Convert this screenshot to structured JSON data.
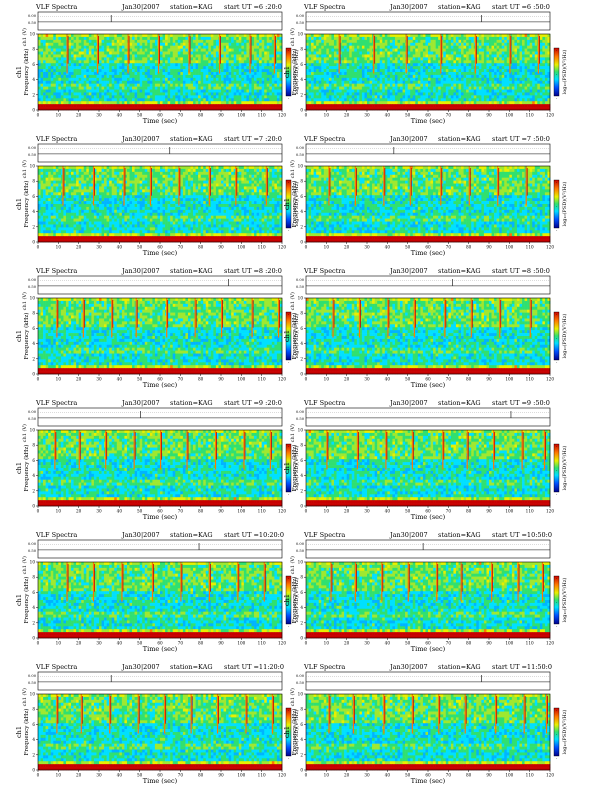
{
  "page_title": "VLF Spectra station KAG 30 Jan 2007 ch1",
  "chart_data": [
    {
      "type": "heatmap",
      "title": "VLF Spectra",
      "date": "Jan30|2007",
      "station": "station=KAG",
      "start_label": "start UT =6 :20:0",
      "xlabel": "Time (sec)",
      "ylabel": "Frequency (kHz)",
      "channel_label": "ch1",
      "amp_label": "ch1 (V)",
      "colorbar_label": "log₁₀(PSD)(V²/Hz)",
      "xlim": [
        0,
        120
      ],
      "ylim": [
        0,
        10
      ],
      "x_ticks": [
        "0",
        "10",
        "20",
        "30",
        "40",
        "50",
        "60",
        "70",
        "80",
        "90",
        "100",
        "110",
        "120"
      ],
      "y_ticks": [
        "0",
        "2",
        "4",
        "6",
        "8",
        "10"
      ],
      "amp_ticks": [
        "0.00",
        "0.50"
      ],
      "cbar_ticks": [
        "-",
        "-",
        "-"
      ],
      "emission_band_khz": [
        6,
        10
      ],
      "vertical_streaks_sec": [
        14,
        29,
        44,
        59,
        74,
        89,
        104,
        116
      ]
    },
    {
      "type": "heatmap",
      "title": "VLF Spectra",
      "date": "Jan30|2007",
      "station": "station=KAG",
      "start_label": "start UT =6 :50:0",
      "xlabel": "Time (sec)",
      "ylabel": "Frequency (kHz)",
      "channel_label": "ch1",
      "amp_label": "ch1 (V)",
      "colorbar_label": "log₁₀(PSD)(V²/Hz)",
      "xlim": [
        0,
        120
      ],
      "ylim": [
        0,
        10
      ],
      "x_ticks": [
        "0",
        "10",
        "20",
        "30",
        "40",
        "50",
        "60",
        "70",
        "80",
        "90",
        "100",
        "110",
        "120"
      ],
      "y_ticks": [
        "0",
        "2",
        "4",
        "6",
        "8",
        "10"
      ],
      "amp_ticks": [
        "0.00",
        "0.50"
      ],
      "cbar_ticks": [
        "-",
        "-",
        "-"
      ],
      "emission_band_khz": [
        6,
        10
      ],
      "vertical_streaks_sec": [
        16,
        33,
        49,
        66,
        83,
        100,
        114
      ]
    },
    {
      "type": "heatmap",
      "title": "VLF Spectra",
      "date": "Jan30|2007",
      "station": "station=KAG",
      "start_label": "start UT =7 :20:0",
      "xlabel": "Time (sec)",
      "ylabel": "Frequency (kHz)",
      "channel_label": "ch1",
      "amp_label": "ch1 (V)",
      "colorbar_label": "log₁₀(PSD)(V²/Hz)",
      "xlim": [
        0,
        120
      ],
      "ylim": [
        0,
        10
      ],
      "x_ticks": [
        "0",
        "10",
        "20",
        "30",
        "40",
        "50",
        "60",
        "70",
        "80",
        "90",
        "100",
        "110",
        "120"
      ],
      "y_ticks": [
        "0",
        "2",
        "4",
        "6",
        "8",
        "10"
      ],
      "amp_ticks": [
        "0.00",
        "0.50"
      ],
      "cbar_ticks": [
        "-",
        "-",
        "-"
      ],
      "emission_band_khz": [
        6,
        10
      ],
      "vertical_streaks_sec": [
        12,
        27,
        42,
        55,
        69,
        84,
        97,
        112
      ]
    },
    {
      "type": "heatmap",
      "title": "VLF Spectra",
      "date": "Jan30|2007",
      "station": "station=KAG",
      "start_label": "start UT =7 :50:0",
      "xlabel": "Time (sec)",
      "ylabel": "Frequency (kHz)",
      "channel_label": "ch1",
      "amp_label": "ch1 (V)",
      "colorbar_label": "log₁₀(PSD)(V²/Hz)",
      "xlim": [
        0,
        120
      ],
      "ylim": [
        0,
        10
      ],
      "x_ticks": [
        "0",
        "10",
        "20",
        "30",
        "40",
        "50",
        "60",
        "70",
        "80",
        "90",
        "100",
        "110",
        "120"
      ],
      "y_ticks": [
        "0",
        "2",
        "4",
        "6",
        "8",
        "10"
      ],
      "amp_ticks": [
        "0.00",
        "0.50"
      ],
      "cbar_ticks": [
        "-",
        "-",
        "-"
      ],
      "emission_band_khz": [
        6,
        10
      ],
      "vertical_streaks_sec": [
        11,
        24,
        38,
        51,
        66,
        80,
        94,
        108
      ]
    },
    {
      "type": "heatmap",
      "title": "VLF Spectra",
      "date": "Jan30|2007",
      "station": "station=KAG",
      "start_label": "start UT =8 :20:0",
      "xlabel": "Time (sec)",
      "ylabel": "Frequency (kHz)",
      "channel_label": "ch1",
      "amp_label": "ch1 (V)",
      "colorbar_label": "log₁₀(PSD)(V²/Hz)",
      "xlim": [
        0,
        120
      ],
      "ylim": [
        0,
        10
      ],
      "x_ticks": [
        "0",
        "10",
        "20",
        "30",
        "40",
        "50",
        "60",
        "70",
        "80",
        "90",
        "100",
        "110",
        "120"
      ],
      "y_ticks": [
        "0",
        "2",
        "4",
        "6",
        "8",
        "10"
      ],
      "amp_ticks": [
        "0.00",
        "0.50"
      ],
      "cbar_ticks": [
        "-",
        "-",
        "-"
      ],
      "emission_band_khz": [
        6,
        10
      ],
      "vertical_streaks_sec": [
        9,
        22,
        36,
        48,
        63,
        77,
        90,
        105,
        118
      ]
    },
    {
      "type": "heatmap",
      "title": "VLF Spectra",
      "date": "Jan30|2007",
      "station": "station=KAG",
      "start_label": "start UT =8 :50:0",
      "xlabel": "Time (sec)",
      "ylabel": "Frequency (kHz)",
      "channel_label": "ch1",
      "amp_label": "ch1 (V)",
      "colorbar_label": "log₁₀(PSD)(V²/Hz)",
      "xlim": [
        0,
        120
      ],
      "ylim": [
        0,
        10
      ],
      "x_ticks": [
        "0",
        "10",
        "20",
        "30",
        "40",
        "50",
        "60",
        "70",
        "80",
        "90",
        "100",
        "110",
        "120"
      ],
      "y_ticks": [
        "0",
        "2",
        "4",
        "6",
        "8",
        "10"
      ],
      "amp_ticks": [
        "0.00",
        "0.50"
      ],
      "cbar_ticks": [
        "-",
        "-",
        "-"
      ],
      "emission_band_khz": [
        6,
        10
      ],
      "vertical_streaks_sec": [
        13,
        26,
        40,
        53,
        68,
        81,
        95,
        110
      ]
    },
    {
      "type": "heatmap",
      "title": "VLF Spectra",
      "date": "Jan30|2007",
      "station": "station=KAG",
      "start_label": "start UT =9 :20:0",
      "xlabel": "Time (sec)",
      "ylabel": "Frequency (kHz)",
      "channel_label": "ch1",
      "amp_label": "ch1 (V)",
      "colorbar_label": "log₁₀(PSD)(V²/Hz)",
      "xlim": [
        0,
        120
      ],
      "ylim": [
        0,
        10
      ],
      "x_ticks": [
        "0",
        "10",
        "20",
        "30",
        "40",
        "50",
        "60",
        "70",
        "80",
        "90",
        "100",
        "110",
        "120"
      ],
      "y_ticks": [
        "0",
        "2",
        "4",
        "6",
        "8",
        "10"
      ],
      "amp_ticks": [
        "0.00",
        "0.50"
      ],
      "cbar_ticks": [
        "-",
        "-",
        "-"
      ],
      "emission_band_khz": [
        6,
        10
      ],
      "vertical_streaks_sec": [
        8,
        20,
        33,
        47,
        60,
        73,
        87,
        101,
        114
      ]
    },
    {
      "type": "heatmap",
      "title": "VLF Spectra",
      "date": "Jan30|2007",
      "station": "station=KAG",
      "start_label": "start UT =9 :50:0",
      "xlabel": "Time (sec)",
      "ylabel": "Frequency (kHz)",
      "channel_label": "ch1",
      "amp_label": "ch1 (V)",
      "colorbar_label": "log₁₀(PSD)(V²/Hz)",
      "xlim": [
        0,
        120
      ],
      "ylim": [
        0,
        10
      ],
      "x_ticks": [
        "0",
        "10",
        "20",
        "30",
        "40",
        "50",
        "60",
        "70",
        "80",
        "90",
        "100",
        "110",
        "120"
      ],
      "y_ticks": [
        "0",
        "2",
        "4",
        "6",
        "8",
        "10"
      ],
      "amp_ticks": [
        "0.00",
        "0.50"
      ],
      "cbar_ticks": [
        "-",
        "-",
        "-"
      ],
      "emission_band_khz": [
        6,
        10
      ],
      "vertical_streaks_sec": [
        10,
        25,
        39,
        52,
        67,
        79,
        92,
        106,
        117
      ]
    },
    {
      "type": "heatmap",
      "title": "VLF Spectra",
      "date": "Jan30|2007",
      "station": "station=KAG",
      "start_label": "start UT =10:20:0",
      "xlabel": "Time (sec)",
      "ylabel": "Frequency (kHz)",
      "channel_label": "ch1",
      "amp_label": "ch1 (V)",
      "colorbar_label": "log₁₀(PSD)(V²/Hz)",
      "xlim": [
        0,
        120
      ],
      "ylim": [
        0,
        10
      ],
      "x_ticks": [
        "0",
        "10",
        "20",
        "30",
        "40",
        "50",
        "60",
        "70",
        "80",
        "90",
        "100",
        "110",
        "120"
      ],
      "y_ticks": [
        "0",
        "2",
        "4",
        "6",
        "8",
        "10"
      ],
      "amp_ticks": [
        "0.00",
        "0.50"
      ],
      "cbar_ticks": [
        "-",
        "-",
        "-"
      ],
      "emission_band_khz": [
        6,
        10
      ],
      "vertical_streaks_sec": [
        14,
        27,
        41,
        56,
        70,
        84,
        98,
        111
      ]
    },
    {
      "type": "heatmap",
      "title": "VLF Spectra",
      "date": "Jan30|2007",
      "station": "station=KAG",
      "start_label": "start UT =10:50:0",
      "xlabel": "Time (sec)",
      "ylabel": "Frequency (kHz)",
      "channel_label": "ch1",
      "amp_label": "ch1 (V)",
      "colorbar_label": "log₁₀(PSD)(V²/Hz)",
      "xlim": [
        0,
        120
      ],
      "ylim": [
        0,
        10
      ],
      "x_ticks": [
        "0",
        "10",
        "20",
        "30",
        "40",
        "50",
        "60",
        "70",
        "80",
        "90",
        "100",
        "110",
        "120"
      ],
      "y_ticks": [
        "0",
        "2",
        "4",
        "6",
        "8",
        "10"
      ],
      "amp_ticks": [
        "0.00",
        "0.50"
      ],
      "cbar_ticks": [
        "-",
        "-",
        "-"
      ],
      "emission_band_khz": [
        6,
        10
      ],
      "vertical_streaks_sec": [
        12,
        24,
        37,
        50,
        64,
        76,
        91,
        104,
        116
      ]
    },
    {
      "type": "heatmap",
      "title": "VLF Spectra",
      "date": "Jan30|2007",
      "station": "station=KAG",
      "start_label": "start UT =11:20:0",
      "xlabel": "Time (sec)",
      "ylabel": "Frequency (kHz)",
      "channel_label": "ch1",
      "amp_label": "ch1 (V)",
      "colorbar_label": "log₁₀(PSD)(V²/Hz)",
      "xlim": [
        0,
        120
      ],
      "ylim": [
        0,
        10
      ],
      "x_ticks": [
        "0",
        "10",
        "20",
        "30",
        "40",
        "50",
        "60",
        "70",
        "80",
        "90",
        "100",
        "110",
        "120"
      ],
      "y_ticks": [
        "0",
        "2",
        "4",
        "6",
        "8",
        "10"
      ],
      "amp_ticks": [
        "0.00",
        "0.50"
      ],
      "cbar_ticks": [
        "-",
        "-",
        "-"
      ],
      "emission_band_khz": [
        6,
        10
      ],
      "vertical_streaks_sec": [
        9,
        21,
        35,
        49,
        62,
        75,
        88,
        102,
        115
      ]
    },
    {
      "type": "heatmap",
      "title": "VLF Spectra",
      "date": "Jan30|2007",
      "station": "station=KAG",
      "start_label": "start UT =11:50:0",
      "xlabel": "Time (sec)",
      "ylabel": "Frequency (kHz)",
      "channel_label": "ch1",
      "amp_label": "ch1 (V)",
      "colorbar_label": "log₁₀(PSD)(V²/Hz)",
      "xlim": [
        0,
        120
      ],
      "ylim": [
        0,
        10
      ],
      "x_ticks": [
        "0",
        "10",
        "20",
        "30",
        "40",
        "50",
        "60",
        "70",
        "80",
        "90",
        "100",
        "110",
        "120"
      ],
      "y_ticks": [
        "0",
        "2",
        "4",
        "6",
        "8",
        "10"
      ],
      "amp_ticks": [
        "0.00",
        "0.50"
      ],
      "cbar_ticks": [
        "-",
        "-",
        "-"
      ],
      "emission_band_khz": [
        6,
        10
      ],
      "vertical_streaks_sec": [
        11,
        23,
        38,
        52,
        65,
        78,
        93,
        107,
        118
      ]
    }
  ]
}
